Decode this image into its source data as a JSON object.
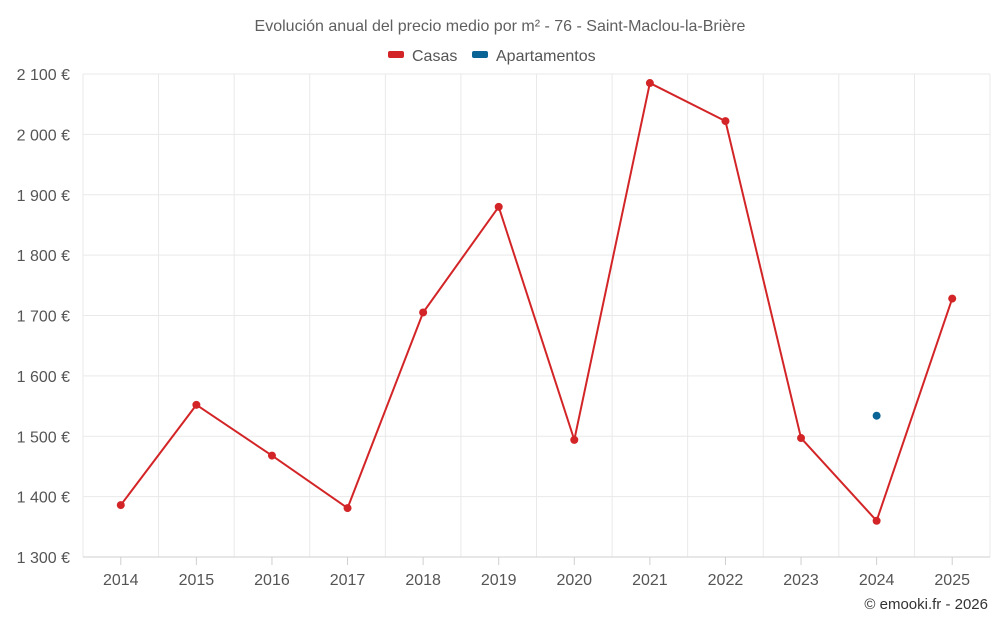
{
  "chart_data": {
    "type": "line",
    "title": "Evolución anual del precio medio por m² - 76 - Saint-Maclou-la-Brière",
    "categories": [
      "2014",
      "2015",
      "2016",
      "2017",
      "2018",
      "2019",
      "2020",
      "2021",
      "2022",
      "2023",
      "2024",
      "2025"
    ],
    "series": [
      {
        "name": "Casas",
        "color": "#d32527",
        "values": [
          1386,
          1552,
          1468,
          1381,
          1705,
          1880,
          1494,
          2085,
          2022,
          1497,
          1360,
          1728
        ]
      },
      {
        "name": "Apartamentos",
        "color": "#0a6496",
        "values": [
          null,
          null,
          null,
          null,
          null,
          null,
          null,
          null,
          null,
          null,
          1534,
          null
        ]
      }
    ],
    "ylim": [
      1300,
      2100
    ],
    "yticks": [
      1300,
      1400,
      1500,
      1600,
      1700,
      1800,
      1900,
      2000,
      2100
    ],
    "ytick_labels": [
      "1 300 €",
      "1 400 €",
      "1 500 €",
      "1 600 €",
      "1 700 €",
      "1 800 €",
      "1 900 €",
      "2 000 €",
      "2 100 €"
    ],
    "xlabel": "",
    "ylabel": "",
    "grid": true,
    "legend_position": "top-center"
  },
  "credit": "© emooki.fr - 2026"
}
